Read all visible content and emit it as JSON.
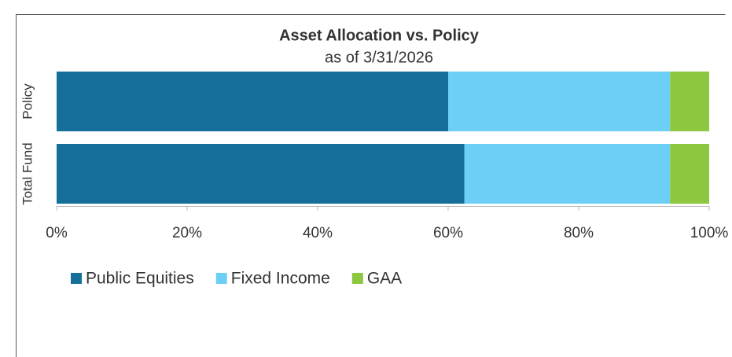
{
  "chart_data": {
    "type": "stacked_bar_horizontal",
    "title": "Asset Allocation vs. Policy",
    "subtitle": "as of 3/31/2026",
    "categories": [
      "Policy",
      "Total Fund"
    ],
    "series": [
      {
        "name": "Public Equities",
        "color": "#156f9a",
        "values": [
          60,
          62.5
        ]
      },
      {
        "name": "Fixed Income",
        "color": "#6dcff6",
        "values": [
          34,
          31.5
        ]
      },
      {
        "name": "GAA",
        "color": "#8dc63f",
        "values": [
          6,
          6
        ]
      }
    ],
    "xlim": [
      0,
      100
    ],
    "xticks": [
      {
        "value": 0,
        "label": "0%"
      },
      {
        "value": 20,
        "label": "20%"
      },
      {
        "value": 40,
        "label": "40%"
      },
      {
        "value": 60,
        "label": "60%"
      },
      {
        "value": 80,
        "label": "80%"
      },
      {
        "value": 100,
        "label": "100%"
      }
    ],
    "legend": "bottom-left"
  }
}
